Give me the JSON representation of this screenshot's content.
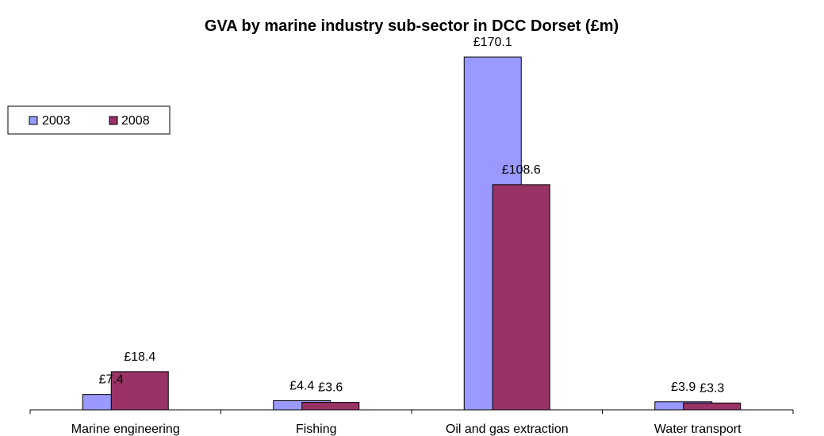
{
  "chart_data": {
    "type": "bar",
    "title": "GVA by marine industry sub-sector in DCC Dorset (£m)",
    "categories": [
      "Marine engineering",
      "Fishing",
      "Oil and gas extraction",
      "Water transport"
    ],
    "series": [
      {
        "name": "2003",
        "color": "#9999ff",
        "values": [
          7.4,
          4.4,
          170.1,
          3.9
        ],
        "labels": [
          "£7.4",
          "£4.4",
          "£170.1",
          "£3.9"
        ]
      },
      {
        "name": "2008",
        "color": "#993366",
        "values": [
          18.4,
          3.6,
          108.6,
          3.3
        ],
        "labels": [
          "£18.4",
          "£3.6",
          "£108.6",
          "£3.3"
        ]
      }
    ],
    "legend": "left",
    "grid": false,
    "ylim": [
      0,
      170.1
    ]
  }
}
